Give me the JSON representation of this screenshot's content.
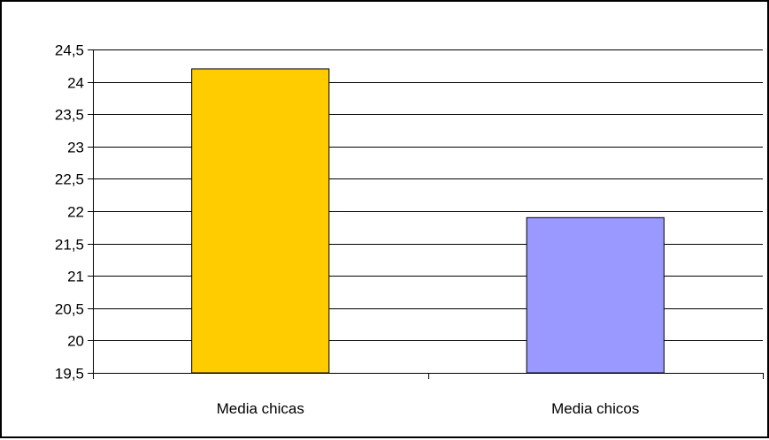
{
  "chart_data": {
    "type": "bar",
    "categories": [
      "Media chicas",
      "Media chicos"
    ],
    "values": [
      24.2,
      21.9
    ],
    "ylim": [
      19.5,
      24.5
    ],
    "yticks": [
      "19,5",
      "20",
      "20,5",
      "21",
      "21,5",
      "22",
      "22,5",
      "23",
      "23,5",
      "24",
      "24,5"
    ],
    "ytick_values": [
      19.5,
      20,
      20.5,
      21,
      21.5,
      22,
      22.5,
      23,
      23.5,
      24,
      24.5
    ],
    "bar_colors": [
      "#FFCC00",
      "#9999FF"
    ],
    "grid": true,
    "title": "",
    "xlabel": "",
    "ylabel": ""
  }
}
